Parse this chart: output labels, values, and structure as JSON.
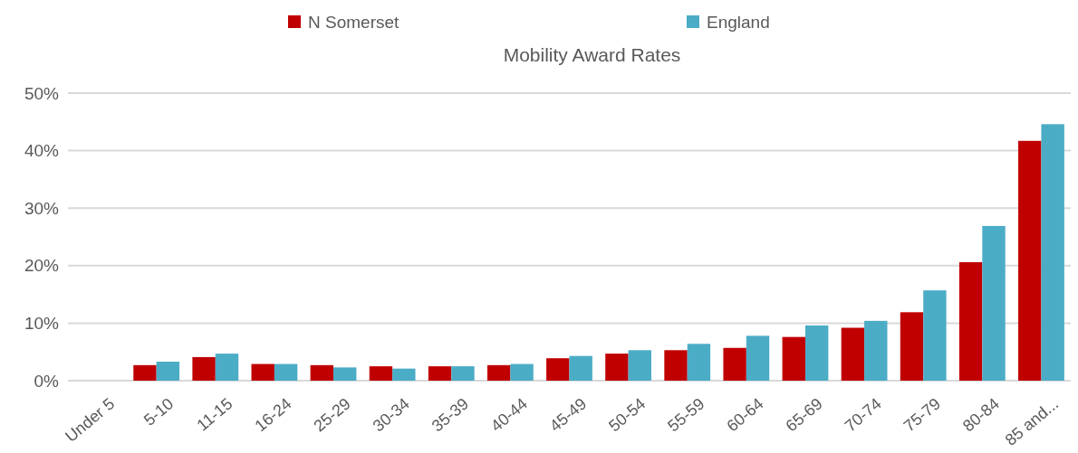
{
  "chart_data": {
    "type": "bar",
    "title": "Mobility Award Rates",
    "categories": [
      "Under 5",
      "5-10",
      "11-15",
      "16-24",
      "25-29",
      "30-34",
      "35-39",
      "40-44",
      "45-49",
      "50-54",
      "55-59",
      "60-64",
      "65-69",
      "70-74",
      "75-79",
      "80-84",
      "85 and..."
    ],
    "series": [
      {
        "name": "N Somerset",
        "color": "#c00000",
        "values": [
          null,
          2.7,
          4.1,
          2.9,
          2.7,
          2.5,
          2.5,
          2.7,
          3.9,
          4.7,
          5.3,
          5.7,
          7.6,
          9.2,
          11.9,
          20.6,
          41.7
        ]
      },
      {
        "name": "England",
        "color": "#4bacc6",
        "values": [
          null,
          3.3,
          4.7,
          2.9,
          2.3,
          2.1,
          2.5,
          2.9,
          4.3,
          5.3,
          6.4,
          7.8,
          9.6,
          10.4,
          15.7,
          26.9,
          44.6
        ]
      }
    ],
    "ylim": [
      0,
      50
    ],
    "yticks": [
      {
        "value": 0,
        "label": "0%"
      },
      {
        "value": 10,
        "label": "10%"
      },
      {
        "value": 20,
        "label": "20%"
      },
      {
        "value": 30,
        "label": "30%"
      },
      {
        "value": 40,
        "label": "40%"
      },
      {
        "value": 50,
        "label": "50%"
      }
    ],
    "grid": "y",
    "legend": "top"
  }
}
